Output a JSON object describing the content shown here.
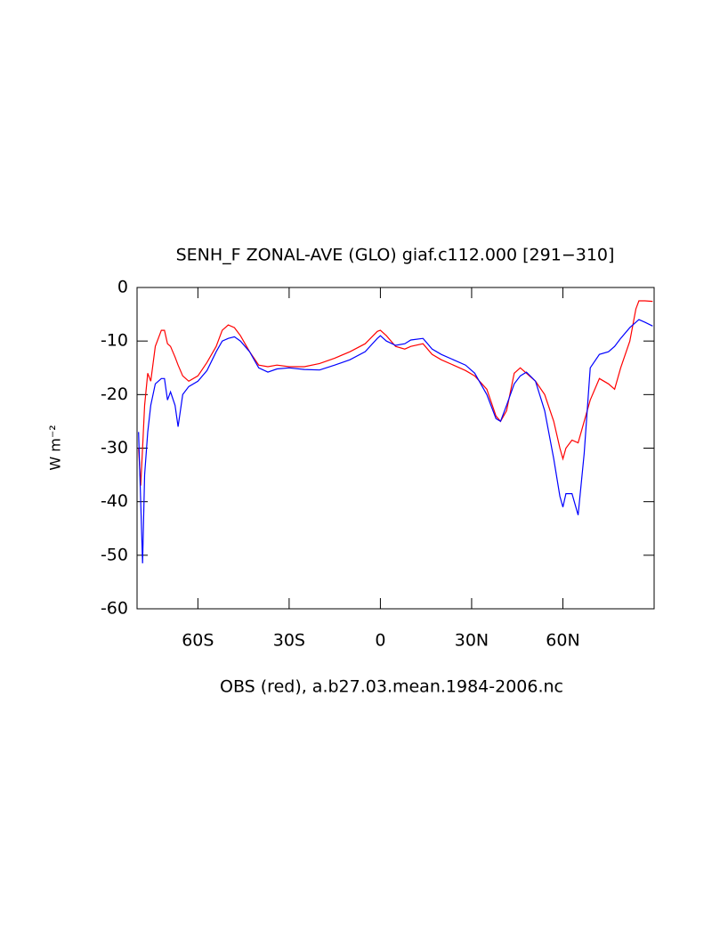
{
  "chart_data": {
    "type": "line",
    "title": "SENH_F ZONAL-AVE (GLO) giaf.c112.000 [291−310]",
    "xlabel": "OBS (red), a.b27.03.mean.1984-2006.nc",
    "ylabel": "W m⁻²",
    "xlim": [
      -80,
      90
    ],
    "ylim": [
      -60,
      0
    ],
    "xticks": [
      {
        "value": -60,
        "label": "60S"
      },
      {
        "value": -30,
        "label": "30S"
      },
      0,
      {
        "value": 30,
        "label": "30N"
      },
      {
        "value": 60,
        "label": "60N"
      }
    ],
    "yticks": [
      0,
      -10,
      -20,
      -30,
      -40,
      -50,
      -60
    ],
    "x": [
      -79.5,
      -78.8,
      -78.2,
      -77.5,
      -76.5,
      -75.5,
      -74,
      -72,
      -71,
      -70,
      -69,
      -67.5,
      -66.5,
      -65,
      -63,
      -60,
      -57,
      -54,
      -52,
      -50,
      -48,
      -46,
      -43,
      -40,
      -37,
      -34,
      -30,
      -25,
      -20,
      -15,
      -10,
      -5,
      -1,
      0,
      2,
      5,
      8,
      10,
      14,
      17,
      20,
      24,
      28,
      31,
      35,
      38,
      39.5,
      41.5,
      44,
      46,
      48,
      51,
      54,
      57,
      59,
      60,
      61,
      63,
      65,
      67,
      69,
      72,
      75,
      77,
      79,
      82,
      84,
      85,
      87,
      89.5
    ],
    "series": [
      {
        "color": "#ff0000",
        "values": [
          -30,
          -37,
          -30,
          -22,
          -16,
          -17.5,
          -11,
          -8,
          -8,
          -10.5,
          -11,
          -13,
          -14.5,
          -16.5,
          -17.5,
          -16.5,
          -14,
          -11,
          -8,
          -7,
          -7.5,
          -9,
          -12,
          -14.5,
          -14.8,
          -14.5,
          -14.8,
          -14.8,
          -14.2,
          -13.2,
          -12,
          -10.5,
          -8.2,
          -8,
          -9,
          -11,
          -11.5,
          -11,
          -10.5,
          -12.5,
          -13.5,
          -14.5,
          -15.5,
          -16.5,
          -19,
          -24,
          -25,
          -23,
          -16,
          -15,
          -16,
          -17.5,
          -20,
          -25,
          -30,
          -32,
          -30,
          -28.5,
          -29,
          -25,
          -21,
          -17,
          -18,
          -19,
          -15,
          -10,
          -4,
          -2.5,
          -2.5,
          -2.6
        ]
      },
      {
        "color": "#0000ff",
        "values": [
          -27,
          -40,
          -51.5,
          -35,
          -27,
          -22,
          -18,
          -17,
          -17,
          -21,
          -19.5,
          -22,
          -26,
          -20,
          -18.5,
          -17.5,
          -15.5,
          -12,
          -10,
          -9.5,
          -9.2,
          -10,
          -12,
          -15,
          -15.8,
          -15.2,
          -15,
          -15.3,
          -15.4,
          -14.5,
          -13.5,
          -12,
          -9.5,
          -9,
          -10,
          -10.8,
          -10.5,
          -9.8,
          -9.5,
          -11.5,
          -12.5,
          -13.5,
          -14.5,
          -16,
          -20,
          -24.5,
          -25,
          -22,
          -18,
          -16.5,
          -15.8,
          -17.5,
          -23,
          -32,
          -39,
          -41,
          -38.5,
          -38.5,
          -42.5,
          -31,
          -15,
          -12.5,
          -12,
          -11,
          -9.5,
          -7.5,
          -6.5,
          -6,
          -6.5,
          -7.2
        ]
      }
    ]
  }
}
